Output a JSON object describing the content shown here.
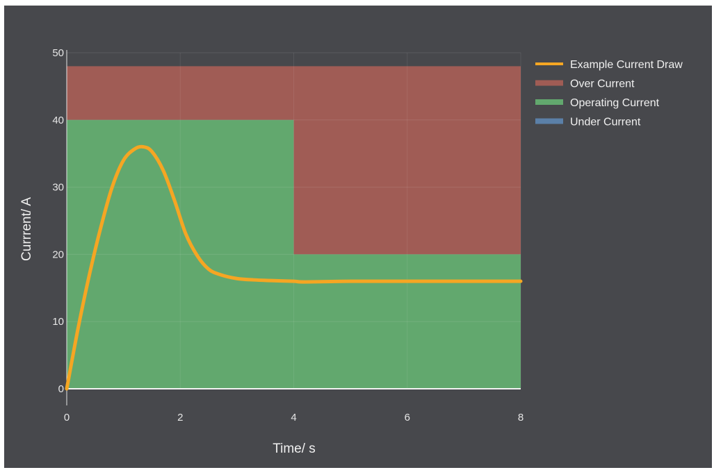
{
  "chart_data": {
    "type": "area",
    "xlabel": "Time/ s",
    "ylabel": "Currrent/ A",
    "xlim": [
      0,
      8
    ],
    "ylim": [
      0,
      50
    ],
    "xticks": [
      0,
      2,
      4,
      6,
      8
    ],
    "yticks": [
      0,
      10,
      20,
      30,
      40,
      50
    ],
    "grid": true,
    "legend_position": "right",
    "series": [
      {
        "name": "Example Current Draw",
        "kind": "line",
        "color": "#f5a623",
        "x": [
          0,
          0.2,
          0.4,
          0.6,
          0.8,
          1.0,
          1.2,
          1.35,
          1.5,
          1.7,
          1.9,
          2.1,
          2.3,
          2.5,
          2.7,
          3.0,
          3.3,
          3.6,
          4.0,
          4.2,
          5.0,
          6.0,
          7.0,
          8.0
        ],
        "y": [
          0,
          9,
          17,
          24,
          30,
          34,
          35.7,
          36,
          35.3,
          32.5,
          28,
          23,
          19.8,
          17.8,
          17,
          16.4,
          16.2,
          16.1,
          16,
          15.9,
          16,
          16,
          16,
          16
        ]
      },
      {
        "name": "Over Current",
        "kind": "band",
        "color": "#a05c55",
        "x": [
          0,
          4,
          4,
          8
        ],
        "lower": [
          40,
          40,
          20,
          20
        ],
        "upper": [
          48,
          48,
          48,
          48
        ]
      },
      {
        "name": "Operating Current",
        "kind": "band",
        "color": "#62a86e",
        "x": [
          0,
          4,
          4,
          8
        ],
        "lower": [
          0,
          0,
          0,
          0
        ],
        "upper": [
          40,
          40,
          20,
          20
        ]
      },
      {
        "name": "Under Current",
        "kind": "band",
        "color": "#5b80a8",
        "x": [
          0,
          8
        ],
        "lower": [
          0,
          0
        ],
        "upper": [
          0,
          0
        ]
      }
    ]
  }
}
